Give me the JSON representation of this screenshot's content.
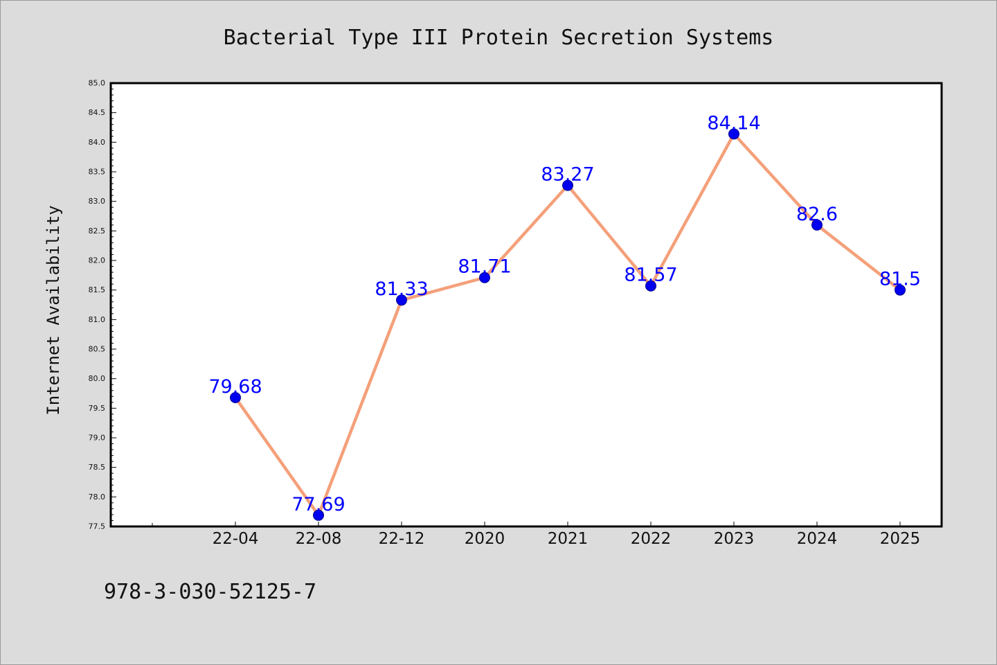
{
  "chart_data": {
    "type": "line",
    "title": "Bacterial Type III Protein Secretion Systems",
    "ylabel": "Internet Availability",
    "xlabel": "",
    "categories": [
      "22-04",
      "22-08",
      "22-12",
      "2020",
      "2021",
      "2022",
      "2023",
      "2024",
      "2025"
    ],
    "series": [
      {
        "values": [
          79.68,
          77.69,
          81.33,
          81.71,
          83.27,
          81.57,
          84.14,
          82.6,
          81.5
        ],
        "data_labels": [
          "79.68",
          "77.69",
          "81.33",
          "81.71",
          "83.27",
          "81.57",
          "84.14",
          "82.6",
          "81.5"
        ],
        "line_color": "#f4a07a",
        "marker_color": "#0000ee",
        "label_color": "#0000ff"
      }
    ],
    "ylim": [
      77.5,
      85.0
    ],
    "ytick_labels": [
      "77.5",
      "78.0",
      "78.5",
      "79.0",
      "79.5",
      "80.0",
      "80.5",
      "81.0",
      "81.5",
      "82.0",
      "82.5",
      "83.0",
      "83.5",
      "84.0",
      "84.5",
      "85.0"
    ],
    "grid": false,
    "legend": "none"
  },
  "footer_text": "978-3-030-52125-7",
  "colors": {
    "background": "#dcdcdc",
    "plot_area": "#ffffff",
    "axis": "#000000"
  }
}
